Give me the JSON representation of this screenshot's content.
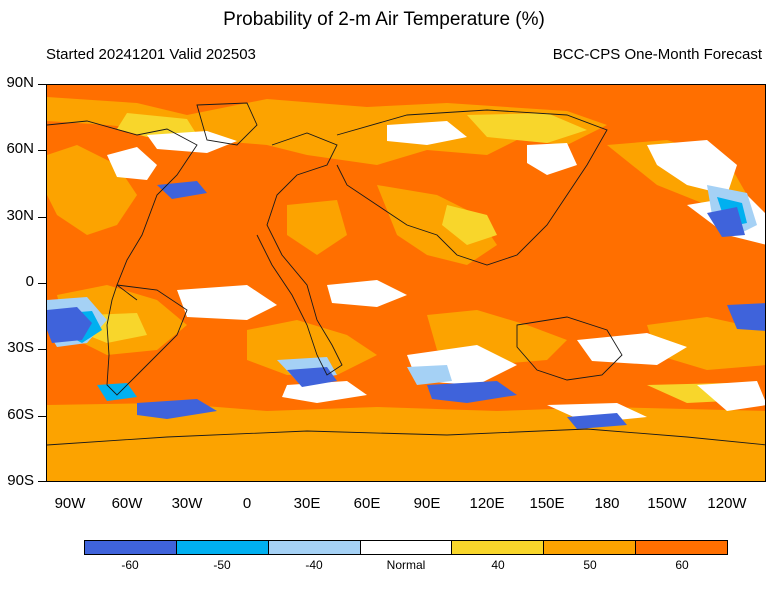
{
  "title": "Probability of 2-m Air Temperature (%)",
  "subtitle_left": "Started 20241201  Valid 202503",
  "subtitle_right": "BCC-CPS One-Month Forecast",
  "lat_labels": [
    "90N",
    "60N",
    "30N",
    "0",
    "30S",
    "60S",
    "90S"
  ],
  "lon_labels": [
    "90W",
    "60W",
    "30W",
    "0",
    "30E",
    "60E",
    "90E",
    "120E",
    "150E",
    "180",
    "150W",
    "120W"
  ],
  "legend": {
    "labels": [
      "-60",
      "-50",
      "-40",
      "Normal",
      "40",
      "50",
      "60"
    ],
    "colors": [
      "#3f63db",
      "#00b0f0",
      "#a5d1f5",
      "#ffffff",
      "#f8d62b",
      "#fca300",
      "#ff6f00"
    ]
  }
}
